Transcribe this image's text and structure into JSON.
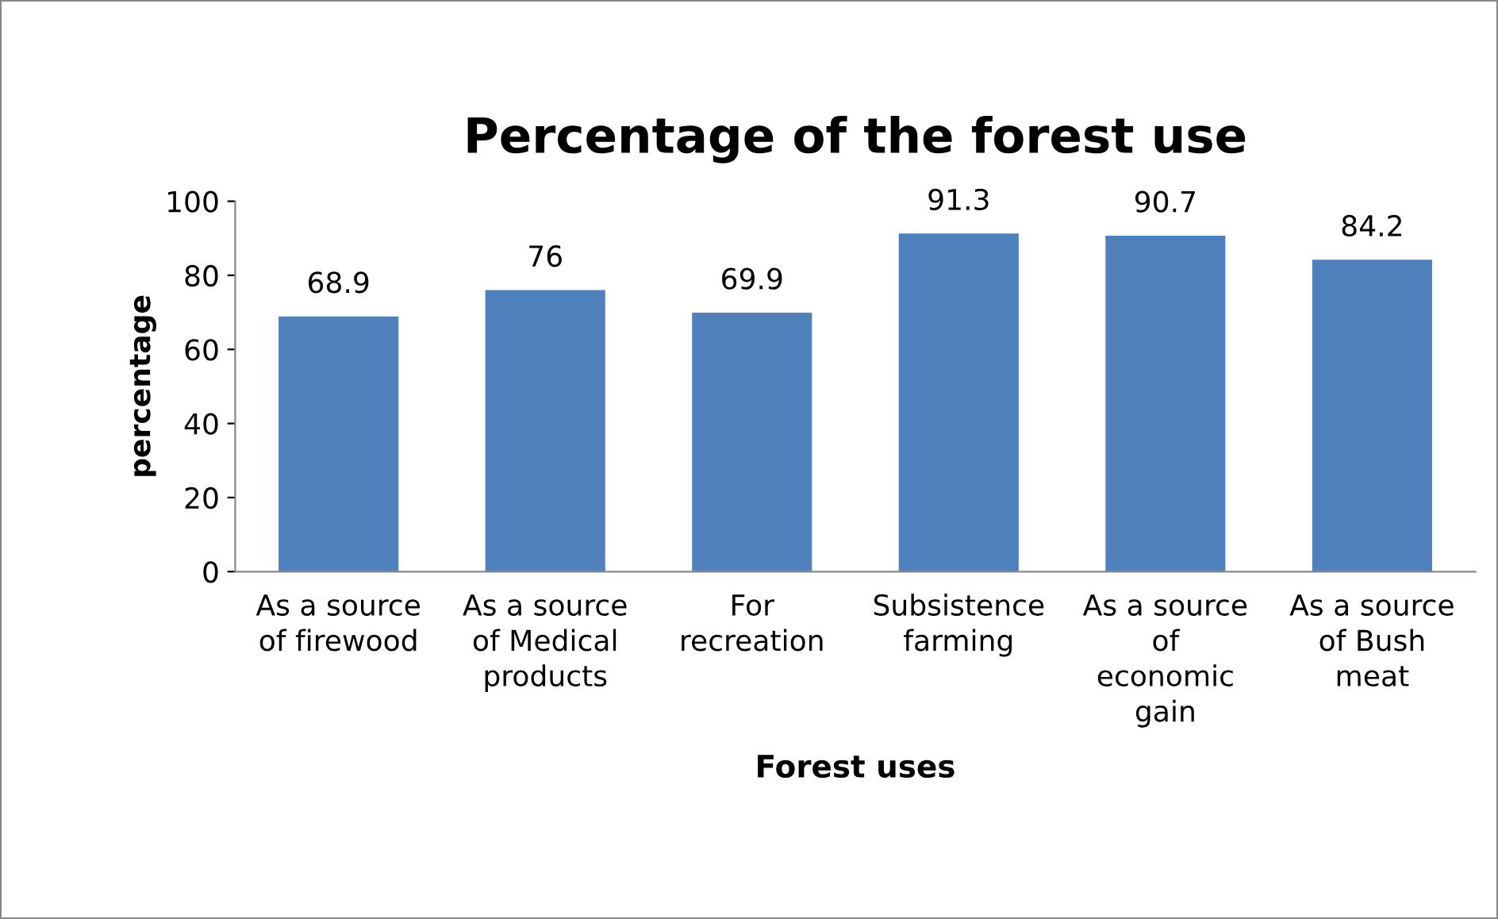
{
  "chart_data": {
    "type": "bar",
    "title": "Percentage of the forest use",
    "xlabel": "Forest uses",
    "ylabel": "percentage",
    "categories": [
      "As a source\nof firewood",
      "As a source\nof Medical\nproducts",
      "For\nrecreation",
      "Subsistence\nfarming",
      "As a source\nof\neconomic\ngain",
      "As a source\nof Bush\nmeat"
    ],
    "values": [
      68.9,
      76,
      69.9,
      91.3,
      90.7,
      84.2
    ],
    "color": "#4f81bd",
    "ylim": [
      0,
      100
    ],
    "yticks": [
      0,
      20,
      40,
      60,
      80,
      100
    ],
    "grid": false,
    "legend": false,
    "data_labels": true
  }
}
